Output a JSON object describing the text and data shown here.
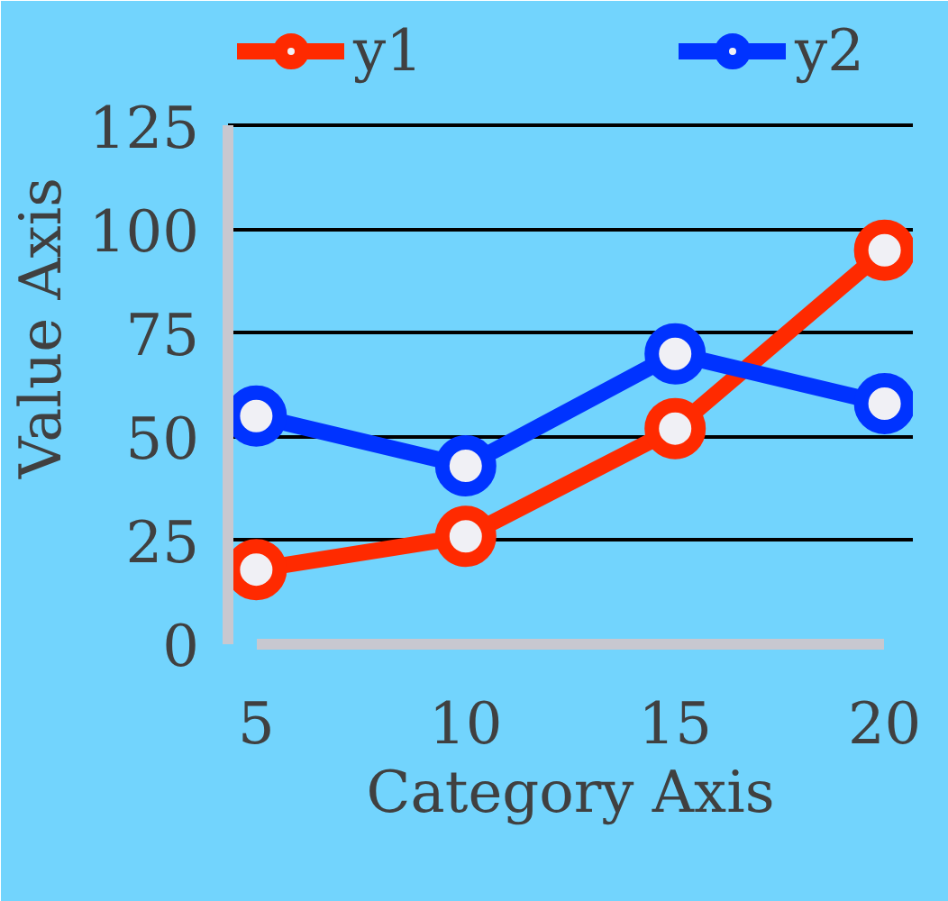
{
  "chart_data": {
    "type": "line",
    "xlabel": "Category Axis",
    "ylabel": "Value Axis",
    "x": [
      5,
      10,
      15,
      20
    ],
    "series": [
      {
        "name": "y1",
        "color": "#ff2a00",
        "values": [
          18,
          26,
          52,
          95
        ]
      },
      {
        "name": "y2",
        "color": "#0033ff",
        "values": [
          55,
          43,
          70,
          58
        ]
      }
    ],
    "xlim": [
      5,
      20
    ],
    "xticks": [
      5,
      10,
      15,
      20
    ],
    "ylim": [
      0,
      125
    ],
    "yticks": [
      0,
      25,
      50,
      75,
      100,
      125
    ],
    "grid": "y",
    "legend": "top",
    "marker": "circle"
  }
}
